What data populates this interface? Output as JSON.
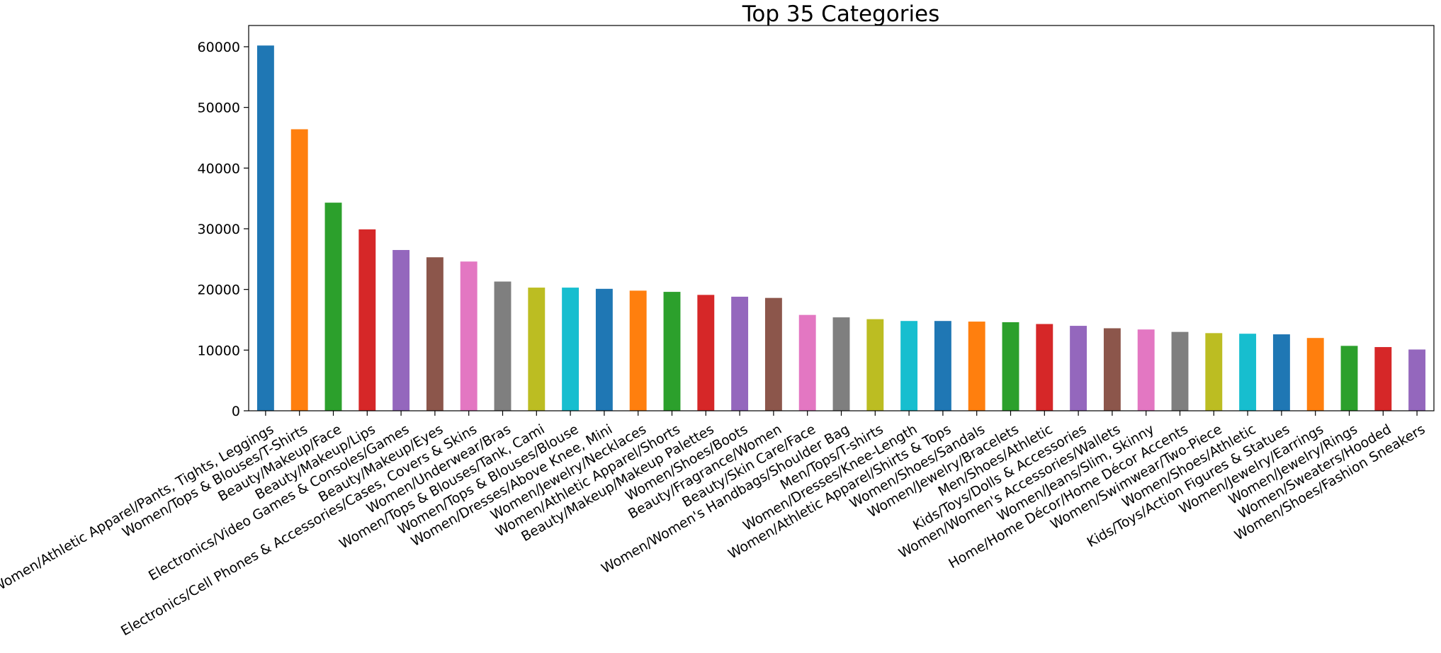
{
  "chart_data": {
    "type": "bar",
    "title": "Top 35 Categories",
    "xlabel": "",
    "ylabel": "",
    "ylim": [
      0,
      63500
    ],
    "yticks": [
      0,
      10000,
      20000,
      30000,
      40000,
      50000,
      60000
    ],
    "grid": false,
    "legend": "none",
    "categories": [
      "Women/Athletic Apparel/Pants, Tights, Leggings",
      "Women/Tops & Blouses/T-Shirts",
      "Beauty/Makeup/Face",
      "Beauty/Makeup/Lips",
      "Electronics/Video Games & Consoles/Games",
      "Beauty/Makeup/Eyes",
      "Electronics/Cell Phones & Accessories/Cases, Covers & Skins",
      "Women/Underwear/Bras",
      "Women/Tops & Blouses/Tank, Cami",
      "Women/Tops & Blouses/Blouse",
      "Women/Dresses/Above Knee, Mini",
      "Women/Jewelry/Necklaces",
      "Women/Athletic Apparel/Shorts",
      "Beauty/Makeup/Makeup Palettes",
      "Women/Shoes/Boots",
      "Beauty/Fragrance/Women",
      "Beauty/Skin Care/Face",
      "Women/Women's Handbags/Shoulder Bag",
      "Men/Tops/T-shirts",
      "Women/Dresses/Knee-Length",
      "Women/Athletic Apparel/Shirts & Tops",
      "Women/Shoes/Sandals",
      "Women/Jewelry/Bracelets",
      "Men/Shoes/Athletic",
      "Kids/Toys/Dolls & Accessories",
      "Women/Women's Accessories/Wallets",
      "Women/Jeans/Slim, Skinny",
      "Home/Home Décor/Home Décor Accents",
      "Women/Swimwear/Two-Piece",
      "Women/Shoes/Athletic",
      "Kids/Toys/Action Figures & Statues",
      "Women/Jewelry/Earrings",
      "Women/Jewelry/Rings",
      "Women/Sweaters/Hooded",
      "Women/Shoes/Fashion Sneakers"
    ],
    "values": [
      60200,
      46400,
      34300,
      29900,
      26500,
      25300,
      24600,
      21300,
      20300,
      20300,
      20100,
      19800,
      19600,
      19100,
      18800,
      18600,
      15800,
      15400,
      15100,
      14800,
      14800,
      14700,
      14600,
      14300,
      14000,
      13600,
      13400,
      13000,
      12800,
      12700,
      12600,
      12000,
      10700,
      10500,
      10100
    ],
    "colors": [
      "#1f77b4",
      "#ff7f0e",
      "#2ca02c",
      "#d62728",
      "#9467bd",
      "#8c564b",
      "#e377c2",
      "#7f7f7f",
      "#bcbd22",
      "#17becf"
    ]
  }
}
